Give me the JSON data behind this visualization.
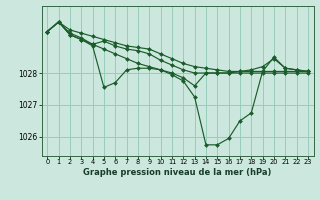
{
  "title": "Graphe pression niveau de la mer (hPa)",
  "bg_color": "#cce8de",
  "grid_color": "#99ccbb",
  "line_color": "#1a5c2a",
  "marker_color": "#1a5c2a",
  "ylim": [
    1025.4,
    1030.1
  ],
  "xlim": [
    -0.5,
    23.5
  ],
  "yticks": [
    1026,
    1027,
    1028
  ],
  "xticks": [
    0,
    1,
    2,
    3,
    4,
    5,
    6,
    7,
    8,
    9,
    10,
    11,
    12,
    13,
    14,
    15,
    16,
    17,
    18,
    19,
    20,
    21,
    22,
    23
  ],
  "series": [
    [
      1029.3,
      1029.6,
      1029.35,
      1029.25,
      1029.15,
      1029.05,
      1028.95,
      1028.85,
      1028.8,
      1028.75,
      1028.6,
      1028.45,
      1028.3,
      1028.2,
      1028.15,
      1028.1,
      1028.05,
      1028.05,
      1028.05,
      1028.05,
      1028.05,
      1028.05,
      1028.05,
      1028.05
    ],
    [
      1029.3,
      1029.6,
      1029.25,
      1029.1,
      1028.9,
      1029.0,
      1028.85,
      1028.75,
      1028.7,
      1028.6,
      1028.4,
      1028.25,
      1028.1,
      1028.0,
      1028.0,
      1028.0,
      1028.0,
      1028.0,
      1028.0,
      1028.0,
      1028.0,
      1028.0,
      1028.0,
      1028.0
    ],
    [
      1029.3,
      1029.6,
      1029.2,
      1029.05,
      1028.9,
      1028.75,
      1028.6,
      1028.45,
      1028.3,
      1028.2,
      1028.1,
      1028.0,
      1027.85,
      1027.6,
      1028.0,
      1028.0,
      1028.0,
      1028.05,
      1028.1,
      1028.2,
      1028.45,
      1028.15,
      1028.1,
      1028.05
    ],
    [
      1029.3,
      1029.6,
      1029.2,
      1029.05,
      1028.85,
      1027.55,
      1027.7,
      1028.1,
      1028.15,
      1028.15,
      1028.1,
      1027.95,
      1027.75,
      1027.25,
      1025.75,
      1025.75,
      1025.95,
      1026.5,
      1026.75,
      1028.05,
      1028.5,
      1028.15,
      1028.1,
      1028.05
    ]
  ]
}
